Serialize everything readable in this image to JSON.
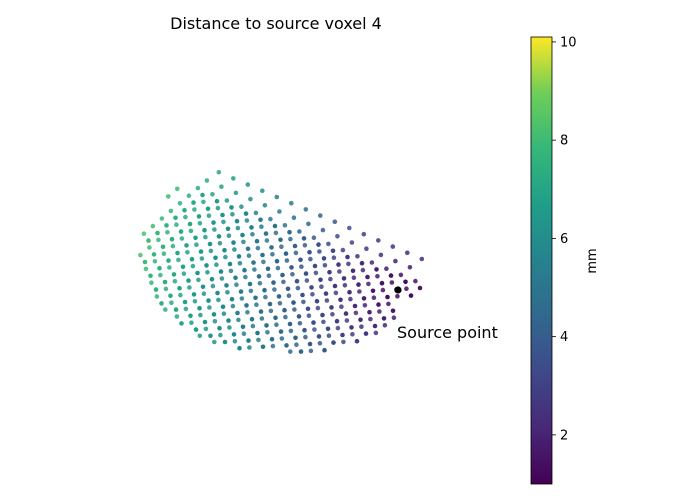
{
  "chart_data": {
    "type": "scatter",
    "title": "Distance to source voxel 4",
    "annotation": "Source point",
    "source_point": {
      "distance": 0
    },
    "colorbar": {
      "label": "mm",
      "min": 1.0,
      "max": 10.1,
      "ticks": [
        "2",
        "4",
        "6",
        "8",
        "10"
      ],
      "tick_values": [
        2,
        4,
        6,
        8,
        10
      ],
      "colormap": "viridis"
    },
    "axes_visible": false,
    "grid": false
  }
}
